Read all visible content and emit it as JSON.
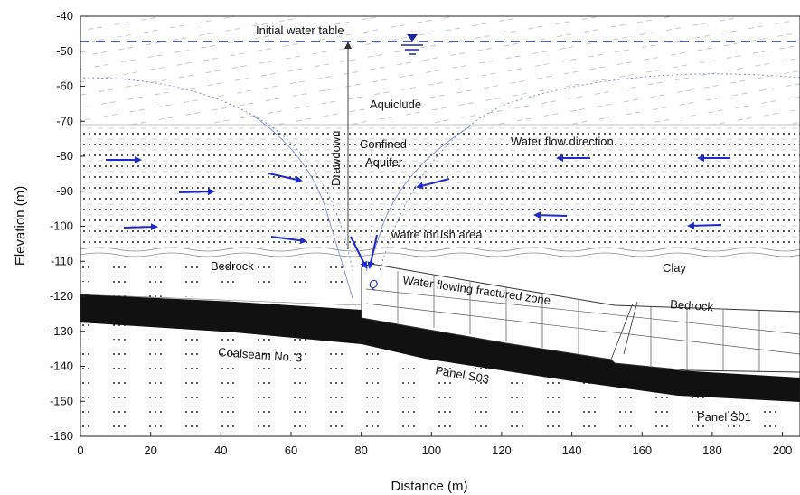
{
  "axes": {
    "xlabel": "Distance (m)",
    "ylabel": "Elevation (m)",
    "xlim": [
      0,
      205
    ],
    "ylim": [
      -160,
      -40
    ],
    "x_ticks": [
      "0",
      "20",
      "40",
      "60",
      "80",
      "100",
      "120",
      "140",
      "160",
      "180",
      "200"
    ],
    "y_ticks": [
      "-40",
      "-50",
      "-60",
      "-70",
      "-80",
      "-90",
      "-100",
      "-110",
      "-120",
      "-130",
      "-140",
      "-150",
      "-160"
    ]
  },
  "labels": {
    "initial_water_table": "Initial water table",
    "aquiclude": "Aquiclude",
    "confined": "Confined",
    "aquifer": "Aquifer",
    "water_flow_direction": "Water flow direction",
    "drawdown": "Drawdown",
    "inrush_area": "watre inrush area",
    "bedrock_left": "Bedrock",
    "clay": "Clay",
    "q": "Q",
    "fractured_zone": "Water flowing fractured zone",
    "bedrock_right": "Bedrock",
    "coalseam": "Coalseam No. 3",
    "panel_s03": "Panel S03",
    "panel_s01": "Panel S01"
  },
  "colors": {
    "arrow": "#1e2bc8",
    "water_table": "#1c2a9c",
    "coal": "#111111",
    "grid": "#999999"
  }
}
